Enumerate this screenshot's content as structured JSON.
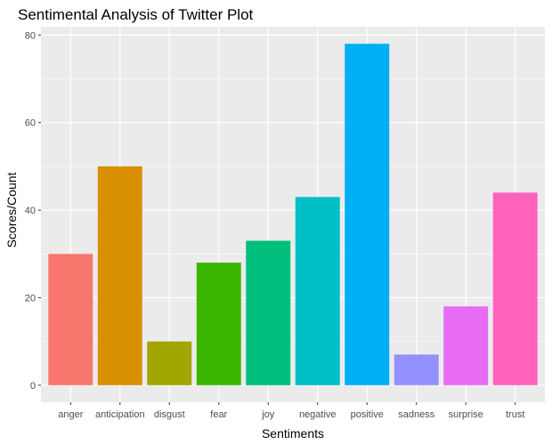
{
  "chart_data": {
    "type": "bar",
    "title": "Sentimental Analysis of Twitter Plot",
    "xlabel": "Sentiments",
    "ylabel": "Scores/Count",
    "categories": [
      "anger",
      "anticipation",
      "disgust",
      "fear",
      "joy",
      "negative",
      "positive",
      "sadness",
      "surprise",
      "trust"
    ],
    "values": [
      30,
      50,
      10,
      28,
      33,
      43,
      78,
      7,
      18,
      44
    ],
    "colors": [
      "#F8766D",
      "#D89000",
      "#A3A500",
      "#39B600",
      "#00BF7D",
      "#00BFC4",
      "#00B0F6",
      "#9590FF",
      "#E76BF3",
      "#FF62BC"
    ],
    "ylim": [
      -3.9,
      81.9
    ],
    "yticks": [
      0,
      20,
      40,
      60,
      80
    ],
    "grid": true,
    "legend": "none",
    "panel_background": "#EBEBEB",
    "grid_color": "#FFFFFF"
  }
}
